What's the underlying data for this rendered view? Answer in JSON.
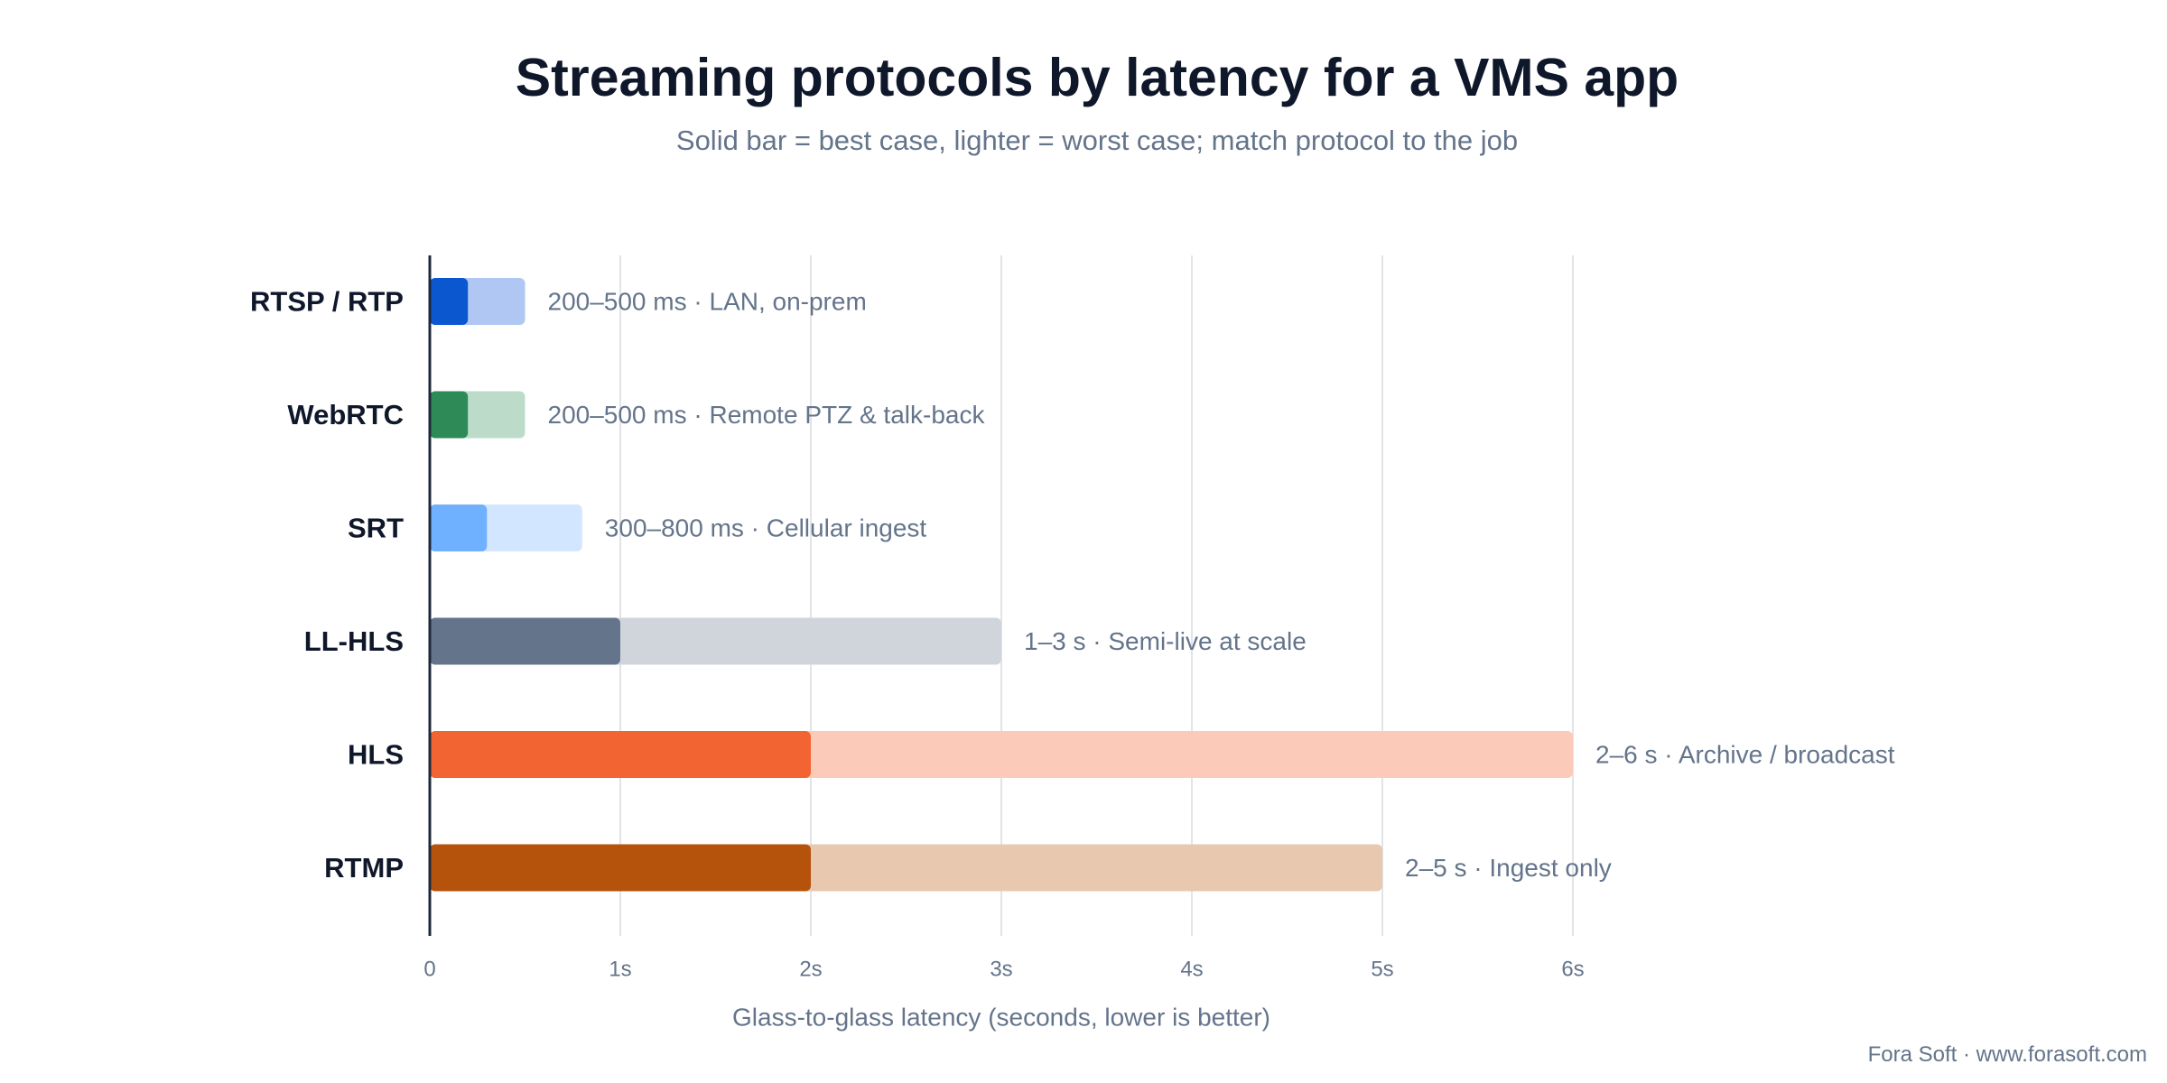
{
  "header": {
    "title": "Streaming protocols by latency for a VMS app",
    "subtitle": "Solid bar = best case, lighter = worst case; match protocol to the job"
  },
  "footer": {
    "credit": "Fora Soft · www.forasoft.com"
  },
  "chart_data": {
    "type": "bar",
    "orientation": "horizontal",
    "stacked_range": true,
    "title": "Streaming protocols by latency for a VMS app",
    "subtitle": "Solid bar = best case, lighter = worst case; match protocol to the job",
    "xlabel": "Glass-to-glass latency (seconds, lower is better)",
    "ylabel": "",
    "xlim": [
      0,
      6
    ],
    "x_ticks": [
      0,
      1,
      2,
      3,
      4,
      5,
      6
    ],
    "x_tick_labels": [
      "0",
      "1s",
      "2s",
      "3s",
      "4s",
      "5s",
      "6s"
    ],
    "grid": "vertical",
    "categories": [
      "RTSP / RTP",
      "WebRTC",
      "SRT",
      "LL-HLS",
      "HLS",
      "RTMP"
    ],
    "series": [
      {
        "name": "Solid bar = best case",
        "values": [
          0.2,
          0.2,
          0.3,
          1,
          2,
          2
        ]
      },
      {
        "name": "lighter = worst case",
        "values": [
          0.5,
          0.5,
          0.8,
          3,
          6,
          5
        ]
      }
    ],
    "annotations": [
      "200–500 ms · LAN, on-prem",
      "200–500 ms · Remote PTZ & talk-back",
      "300–800 ms · Cellular ingest",
      "1–3 s · Semi-live at scale",
      "2–6 s · Archive / broadcast",
      "2–5 s · Ingest only"
    ],
    "colors": {
      "best": [
        "#0b57d0",
        "#2e8b57",
        "#6fb0ff",
        "#64748b",
        "#f26532",
        "#b5520c"
      ],
      "worst": [
        "#afc7f2",
        "#bcdcc9",
        "#d3e6ff",
        "#d0d5dc",
        "#fccab8",
        "#e8c8af"
      ],
      "axis": "#1e293b",
      "grid": "#e2e4e8",
      "category_label": "#0f172a",
      "annotation": "#64748b",
      "tick_label": "#64748b"
    }
  }
}
